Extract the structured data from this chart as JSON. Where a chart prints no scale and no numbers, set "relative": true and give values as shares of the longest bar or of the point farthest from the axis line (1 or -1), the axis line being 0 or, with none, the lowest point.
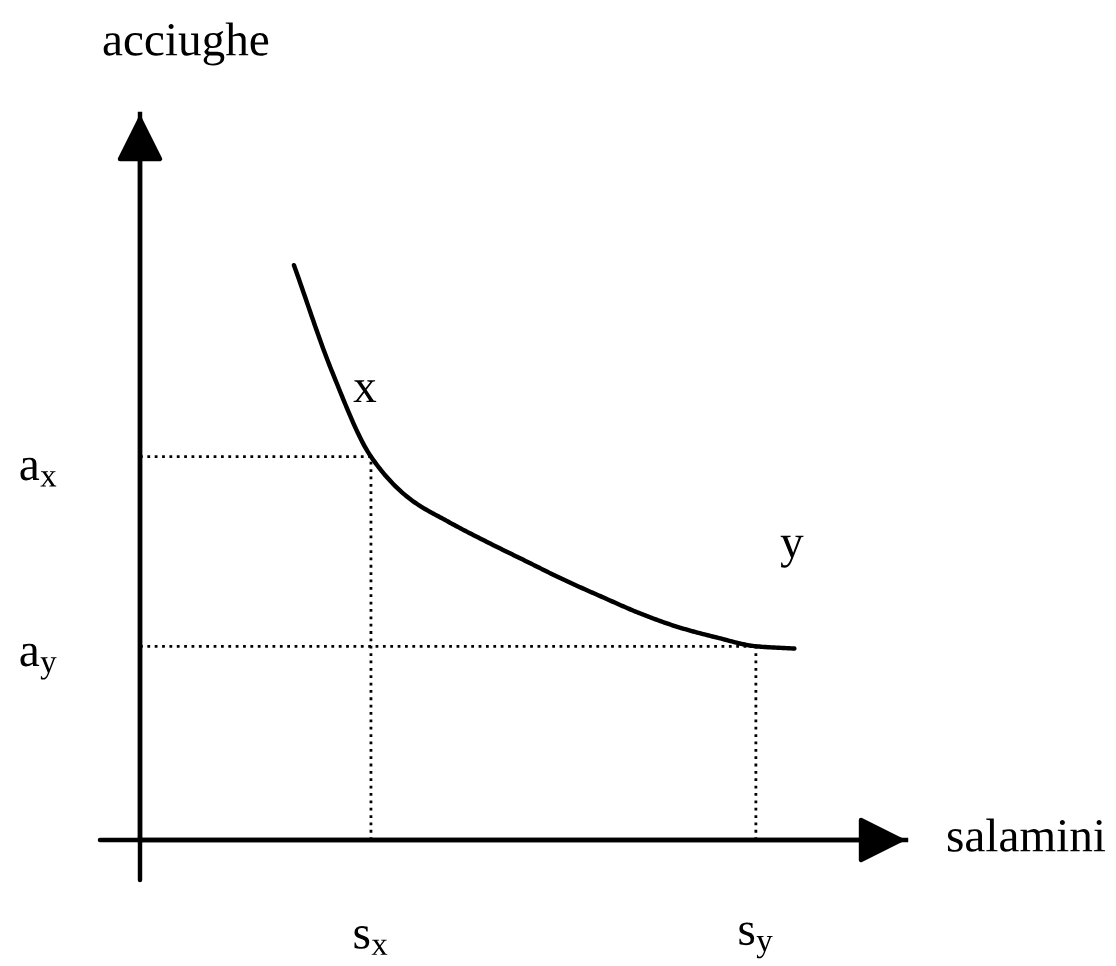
{
  "chart_data": {
    "type": "line",
    "relative": true,
    "xlabel": "salamini",
    "ylabel": "acciughe",
    "categories": [
      null,
      null,
      null,
      null,
      null,
      "s$_{x}$",
      null,
      null,
      null,
      null,
      null,
      null,
      null,
      null,
      null,
      "s$_{y}$",
      null
    ],
    "series": [
      {
        "color": "#000000",
        "values": [
          null,
          null,
          null,
          1.0,
          0.813,
          0.667,
          0.594,
          0.554,
          0.519,
          0.486,
          0.453,
          0.423,
          0.394,
          0.37,
          0.352,
          0.337,
          0.333
        ]
      }
    ],
    "ref_lines": [
      {
        "axis": "y",
        "value": 0.667,
        "label": "a$_{x}$",
        "color": "#000000",
        "line_style": "dotted"
      },
      {
        "axis": "y",
        "value": 0.337,
        "label": "a$_{y}$",
        "color": "#000000",
        "line_style": "dotted"
      },
      {
        "axis": "x",
        "value": "s$_{x}$",
        "color": "#000000",
        "line_style": "dotted"
      },
      {
        "axis": "x",
        "value": "s$_{y}$",
        "color": "#000000",
        "line_style": "dotted"
      }
    ],
    "annotations": [
      {
        "text": "x",
        "x": "s$_{x}$",
        "y": 0.667
      },
      {
        "text": "y",
        "x": "s$_{y}$",
        "y": 0.337
      }
    ]
  }
}
